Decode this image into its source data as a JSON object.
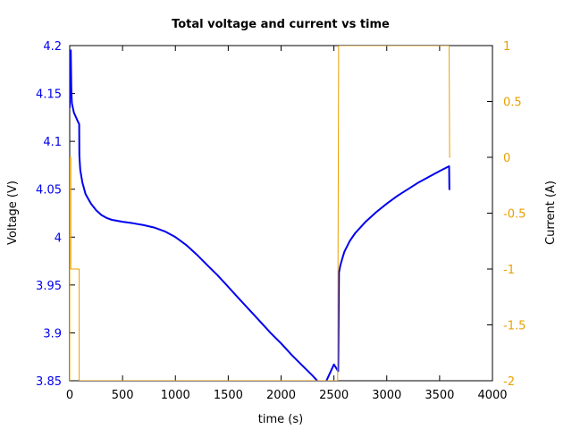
{
  "chart_data": {
    "type": "line",
    "title": "Total voltage and current vs time",
    "xlabel": "time (s)",
    "ylabel_left": "Voltage (V)",
    "ylabel_right": "Current (A)",
    "xlim": [
      0,
      4000
    ],
    "ylim_left": [
      3.85,
      4.2
    ],
    "ylim_right": [
      -2,
      1
    ],
    "x_ticks": [
      "0",
      "500",
      "1000",
      "1500",
      "2000",
      "2500",
      "3000",
      "3500",
      "4000"
    ],
    "y_left_ticks": [
      "3.85",
      "3.9",
      "3.95",
      "4",
      "4.05",
      "4.1",
      "4.15",
      "4.2"
    ],
    "y_right_ticks": [
      "-2",
      "-1.5",
      "-1",
      "-0.5",
      "0",
      "0.5",
      "1"
    ],
    "grid": false,
    "colors": {
      "voltage": "#0000ee",
      "current": "#e8a000",
      "left_ticks": "#0000ee",
      "right_ticks": "#e8a000"
    },
    "series": [
      {
        "axis": "left",
        "x": [
          0,
          5,
          10,
          15,
          20,
          30,
          40,
          60,
          80,
          90,
          91,
          100,
          120,
          150,
          200,
          250,
          300,
          350,
          400,
          500,
          600,
          700,
          800,
          900,
          1000,
          1100,
          1200,
          1300,
          1400,
          1500,
          1600,
          1700,
          1800,
          1900,
          2000,
          2100,
          2200,
          2300,
          2400,
          2500,
          2540,
          2542,
          2548,
          2560,
          2580,
          2600,
          2650,
          2700,
          2800,
          2900,
          3000,
          3100,
          3200,
          3300,
          3400,
          3500,
          3590,
          3592,
          3600
        ],
        "values": [
          4.135,
          4.195,
          4.195,
          4.155,
          4.14,
          4.135,
          4.13,
          4.125,
          4.12,
          4.118,
          4.085,
          4.07,
          4.057,
          4.045,
          4.035,
          4.028,
          4.023,
          4.02,
          4.018,
          4.016,
          4.0145,
          4.0125,
          4.01,
          4.006,
          4.0,
          3.992,
          3.982,
          3.971,
          3.96,
          3.948,
          3.936,
          3.924,
          3.912,
          3.9,
          3.889,
          3.877,
          3.866,
          3.855,
          3.843,
          3.867,
          3.86,
          3.88,
          3.963,
          3.97,
          3.978,
          3.985,
          3.996,
          4.004,
          4.016,
          4.026,
          4.035,
          4.043,
          4.05,
          4.057,
          4.063,
          4.069,
          4.074,
          4.05,
          4.05
        ]
      },
      {
        "axis": "right",
        "x": [
          0,
          0,
          10,
          10,
          90,
          90,
          100,
          2535,
          2545,
          2545,
          3590,
          3595,
          3600
        ],
        "values": [
          -2,
          0,
          0,
          -1,
          -1,
          -2,
          -2,
          -2,
          1,
          1,
          1,
          0,
          0
        ]
      }
    ]
  }
}
